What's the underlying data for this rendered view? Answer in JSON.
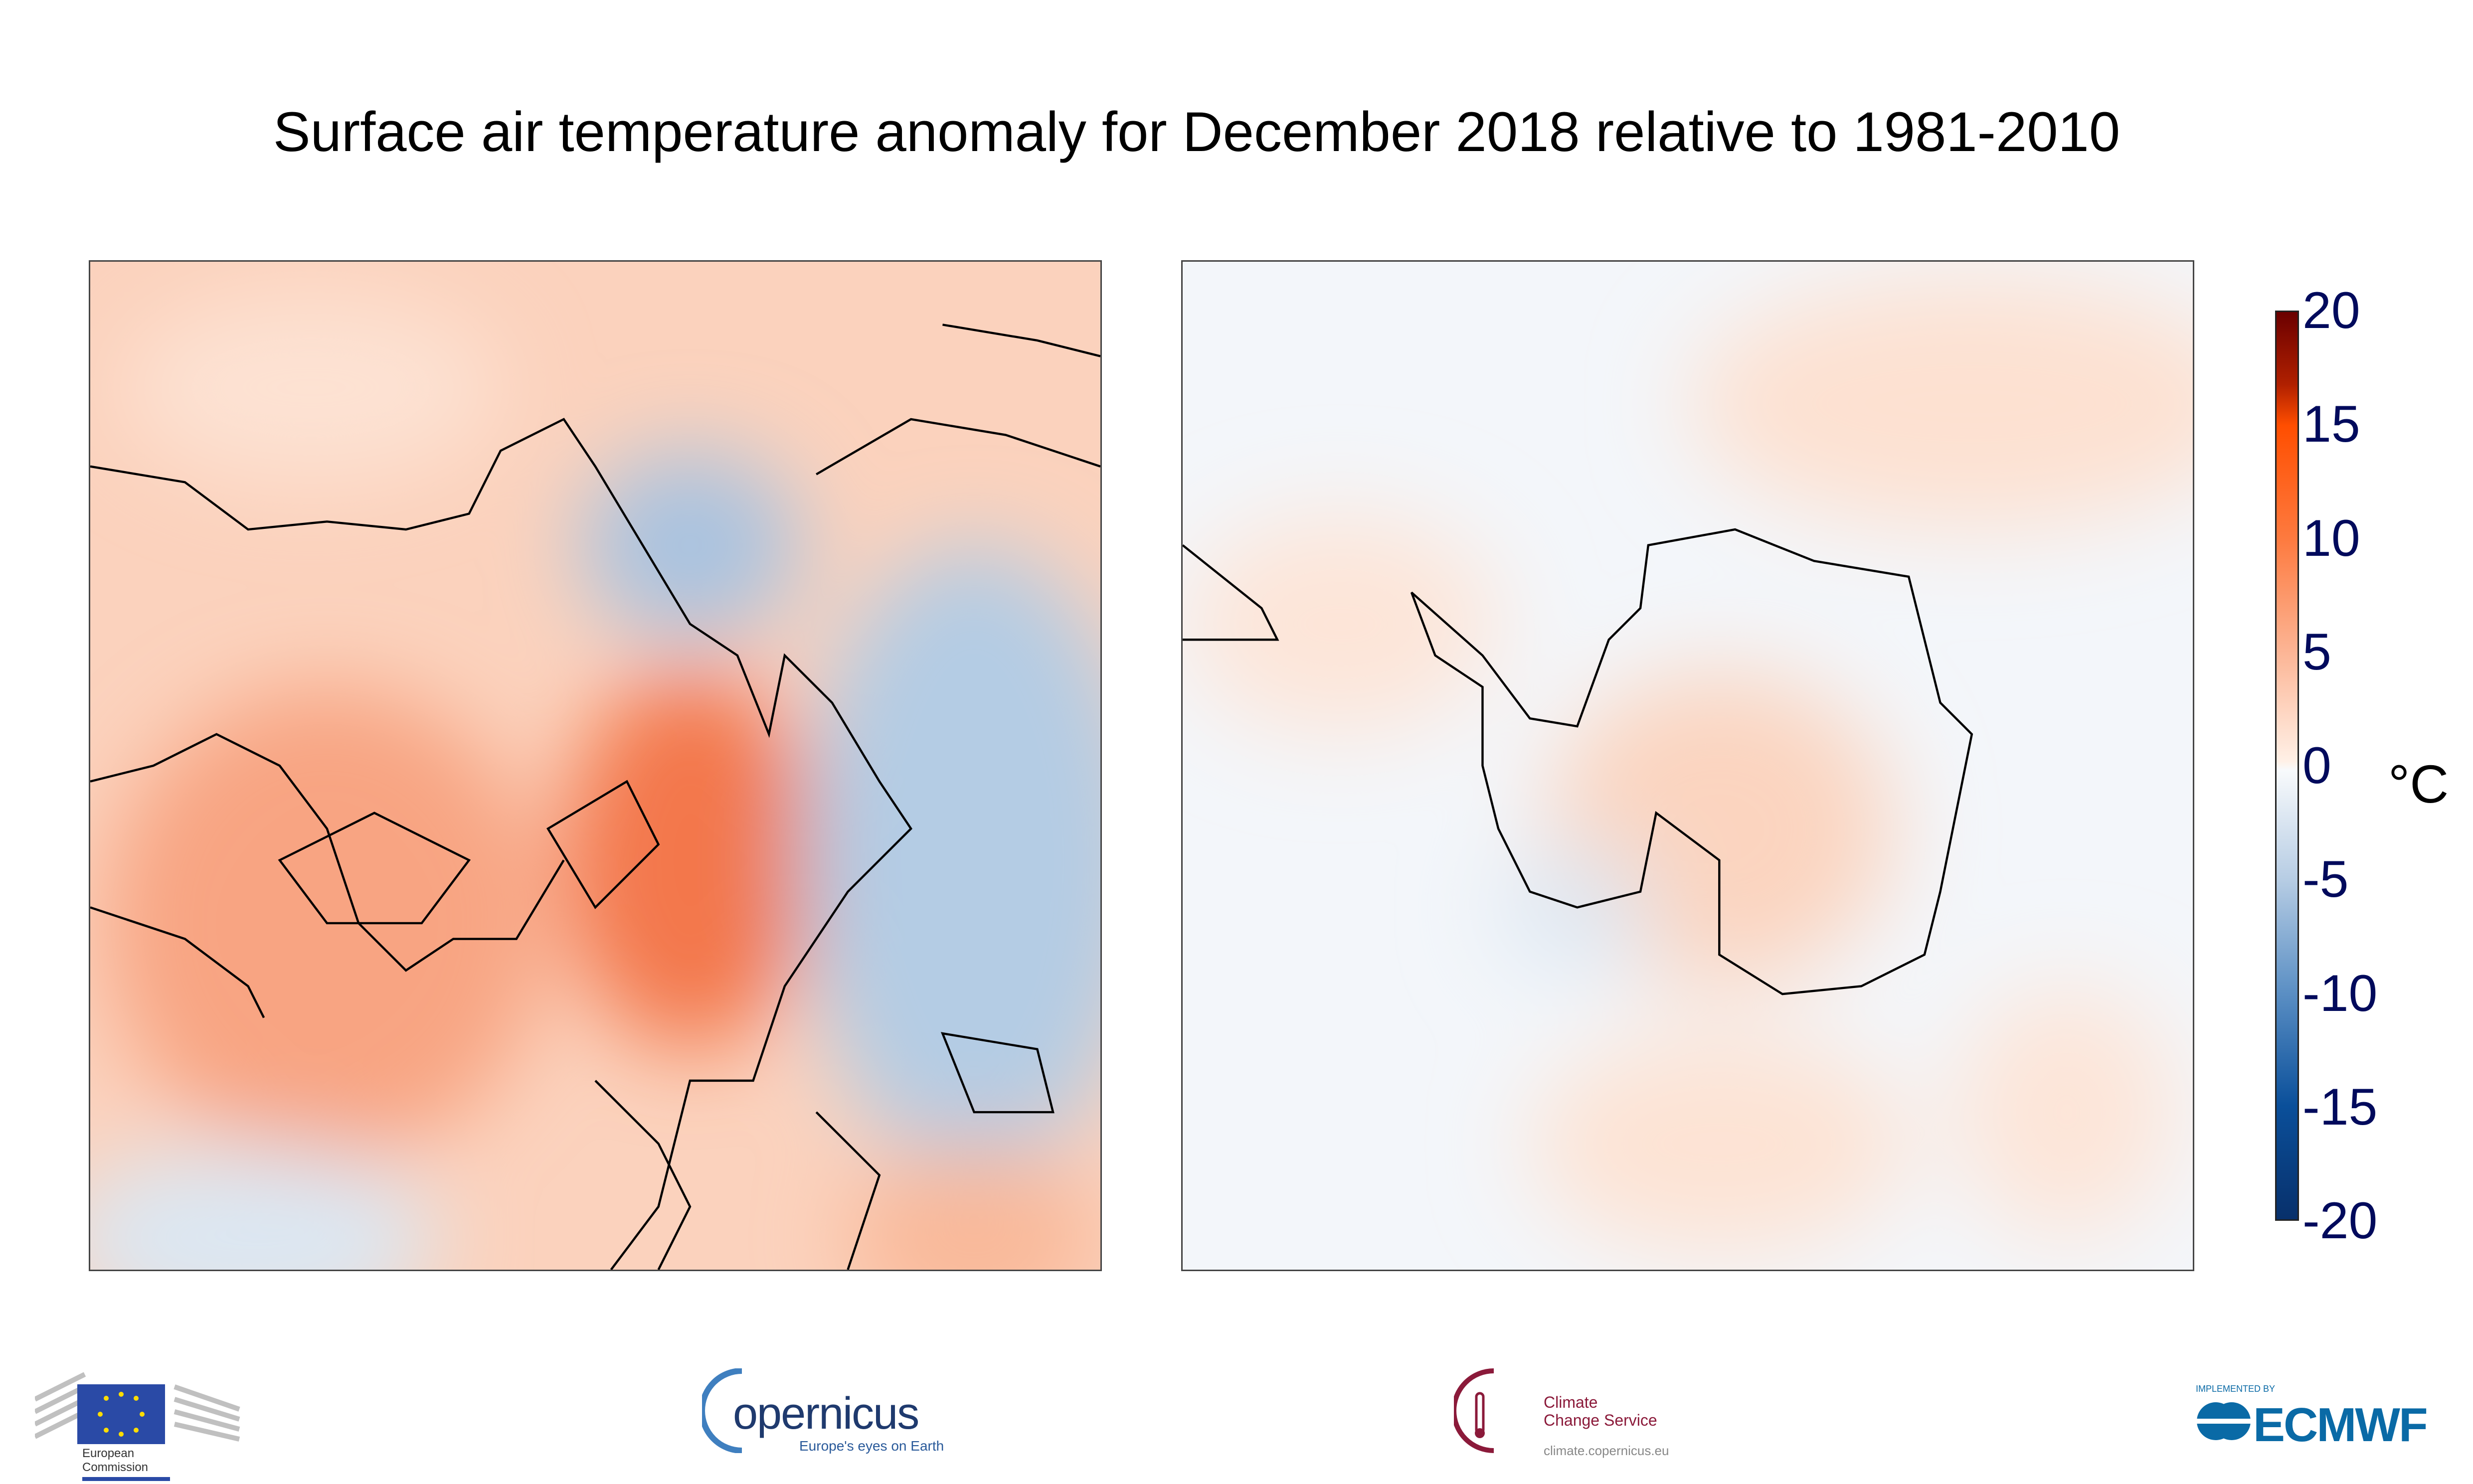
{
  "chart_data": {
    "type": "heatmap",
    "title": "Surface air temperature anomaly for December 2018 relative to 1981-2010",
    "panels": [
      "Northern hemisphere polar projection",
      "Southern hemisphere polar projection"
    ],
    "colorbar": {
      "min": -20,
      "max": 20,
      "ticks": [
        "20",
        "15",
        "10",
        "5",
        "0",
        "-5",
        "-10",
        "-15",
        "-20"
      ],
      "tick_values": [
        20,
        15,
        10,
        5,
        0,
        -5,
        -10,
        -15,
        -20
      ],
      "unit": "°C",
      "colors": {
        "-20": "#08306b",
        "-15": "#0a4f9a",
        "-10": "#5b8fc4",
        "-5": "#b7cde4",
        "0": "#ffffff",
        "5": "#fcb595",
        "10": "#fd7a3f",
        "15": "#ff4e00",
        "20": "#6b0000"
      }
    }
  },
  "logos": {
    "ec": {
      "line1": "European",
      "line2": "Commission"
    },
    "copernicus": {
      "name": "opernicus",
      "tagline": "Europe's eyes on Earth"
    },
    "c3s": {
      "line1": "Climate",
      "line2": "Change Service",
      "url": "climate.copernicus.eu"
    },
    "ecmwf": {
      "pre": "IMPLEMENTED BY",
      "name": "ECMWF"
    }
  },
  "colors": {
    "tick_text": "#000a5c",
    "coast": "#000000",
    "ec_blue": "#2a4aa6",
    "c3s": "#8b1a3a",
    "ecmwf": "#0a6aa6",
    "copernicus": "#1f3a6e"
  }
}
